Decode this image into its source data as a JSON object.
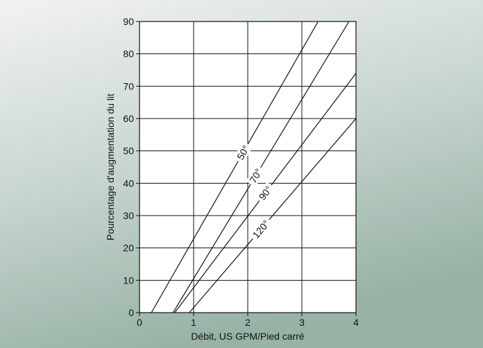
{
  "chart_data": {
    "type": "line",
    "title": "",
    "xlabel": "Débit, US GPM/Pied carré",
    "ylabel": "Pourcentage d'augmentation du lit",
    "xlim": [
      0,
      4
    ],
    "ylim": [
      0,
      90
    ],
    "x_ticks": [
      "0",
      "1",
      "2",
      "3",
      "4"
    ],
    "y_ticks": [
      "0",
      "10",
      "20",
      "30",
      "40",
      "50",
      "60",
      "70",
      "80",
      "90"
    ],
    "grid": true,
    "series": [
      {
        "name": "50°",
        "x": [
          0.22,
          3.3
        ],
        "y": [
          0,
          90
        ]
      },
      {
        "name": "70°",
        "x": [
          0.62,
          3.87
        ],
        "y": [
          0,
          90
        ]
      },
      {
        "name": "90°",
        "x": [
          0.65,
          4.0
        ],
        "y": [
          0,
          74
        ]
      },
      {
        "name": "120°",
        "x": [
          0.92,
          4.0
        ],
        "y": [
          0,
          60
        ]
      }
    ],
    "colors": {
      "background_top": "#eef0ee",
      "background_bottom": "#9eb7ab",
      "plot_bg": "#ffffff",
      "line": "#111111"
    }
  }
}
